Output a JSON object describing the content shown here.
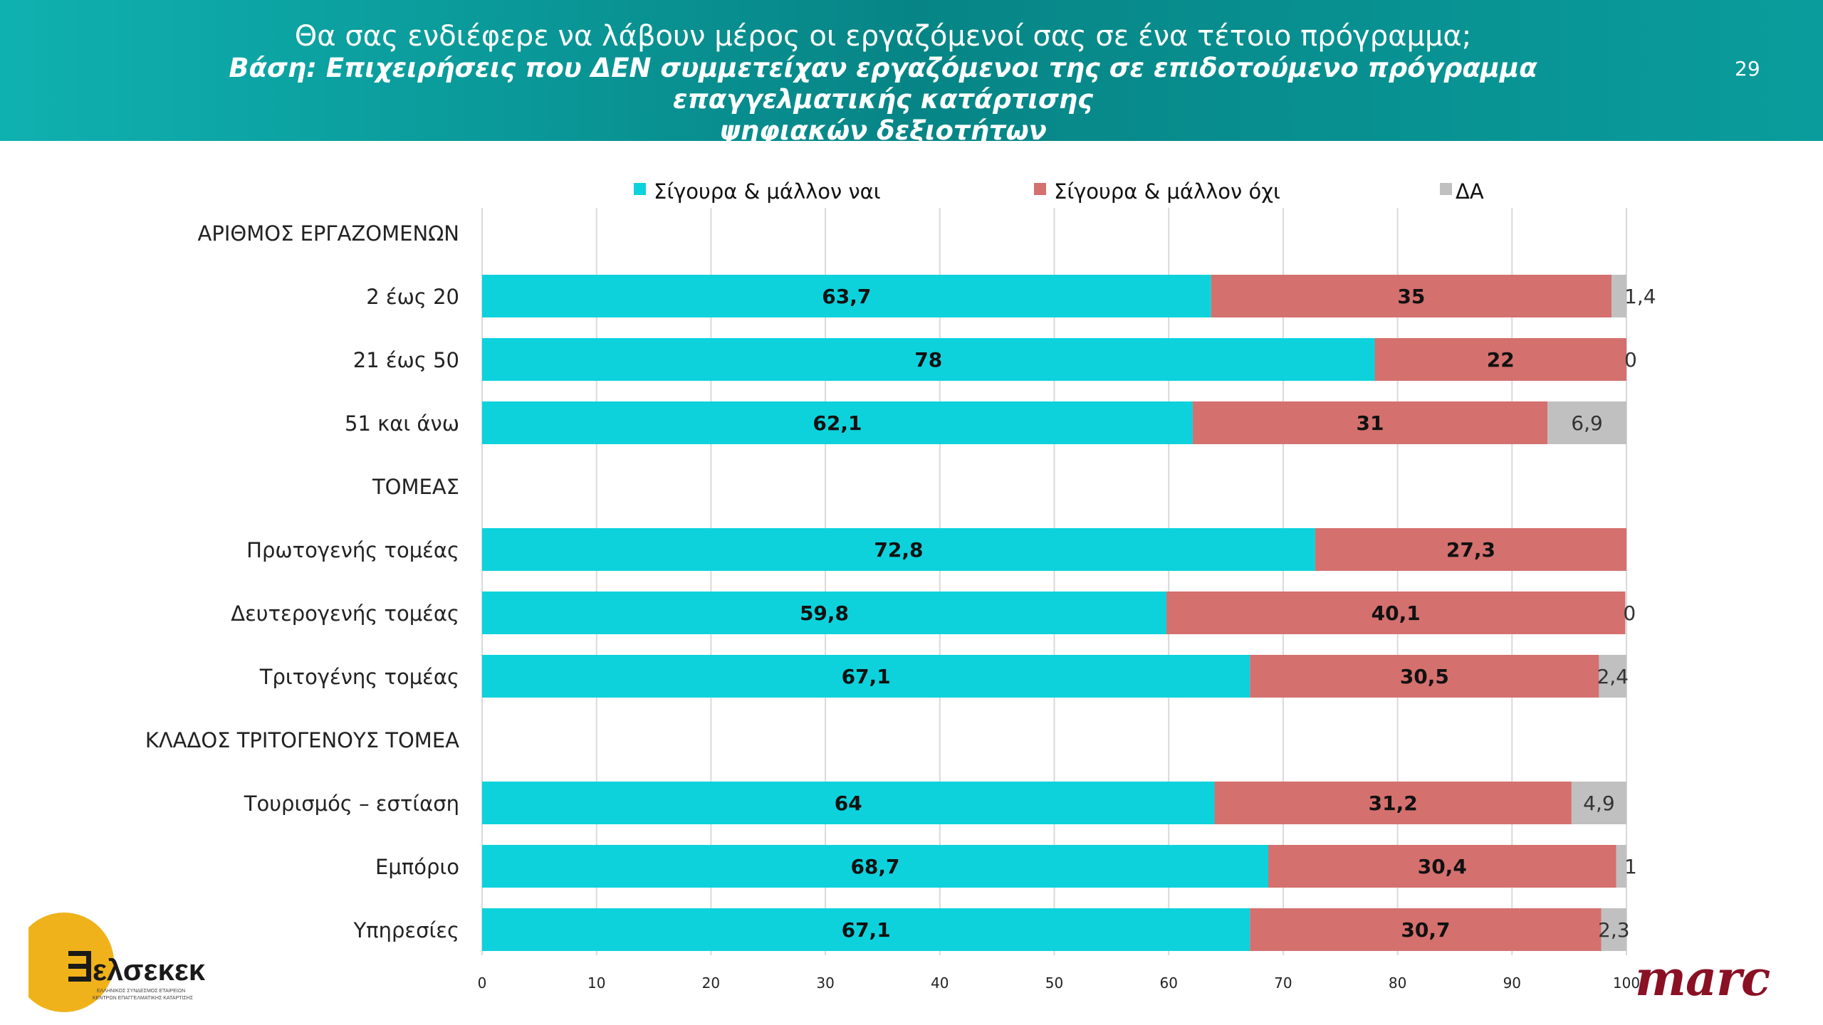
{
  "header": {
    "title": "Θα σας ενδιέφερε να λάβουν μέρος οι εργαζόμενοί σας σε ένα τέτοιο πρόγραμμα;",
    "subtitle_line1": "Βάση: Επιχειρήσεις που ΔΕΝ συμμετείχαν εργαζόμενοι της σε επιδοτούμενο πρόγραμμα επαγγελματικής κατάρτισης",
    "subtitle_line2": "ψηφιακών δεξιοτήτων",
    "page_number": "29"
  },
  "logos": {
    "left_brand": "ελσεκεκ",
    "left_tagline_1": "ΕΛΛΗΝΙΚΟΣ ΣΥΝΔΕΣΜΟΣ ΕΤΑΙΡΕΙΩΝ",
    "left_tagline_2": "ΚΕΝΤΡΩΝ ΕΠΑΓΓΕΛΜΑΤΙΚΗΣ ΚΑΤΑΡΤΙΣΗΣ",
    "right_brand": "marc"
  },
  "chart_data": {
    "type": "bar",
    "orientation": "horizontal",
    "stacked": true,
    "xlim": [
      0,
      100
    ],
    "xticks": [
      0,
      10,
      20,
      30,
      40,
      50,
      60,
      70,
      80,
      90,
      100
    ],
    "grid": true,
    "legend_position": "top",
    "colors": {
      "yes": "#0dd2dc",
      "no": "#d4706e",
      "na": "#c0c0c0"
    },
    "series": [
      {
        "key": "yes",
        "name": "Σίγουρα & μάλλον ναι"
      },
      {
        "key": "no",
        "name": "Σίγουρα & μάλλον όχι"
      },
      {
        "key": "na",
        "name": "ΔΑ"
      }
    ],
    "rows": [
      {
        "label": "ΑΡΙΘΜΟΣ ΕΡΓΑΖΟΜΕΝΩΝ",
        "section": true
      },
      {
        "label": "2 έως 20",
        "values": [
          63.7,
          35,
          1.4
        ],
        "labels": [
          "63,7",
          "35",
          "1,4"
        ]
      },
      {
        "label": "21 έως 50",
        "values": [
          78,
          22,
          0
        ],
        "labels": [
          "78",
          "22",
          "0"
        ]
      },
      {
        "label": "51 και άνω",
        "values": [
          62.1,
          31,
          6.9
        ],
        "labels": [
          "62,1",
          "31",
          "6,9"
        ]
      },
      {
        "label": "ΤΟΜΕΑΣ",
        "section": true
      },
      {
        "label": "Πρωτογενής τομέας",
        "values": [
          72.8,
          27.3
        ],
        "labels": [
          "72,8",
          "27,3"
        ]
      },
      {
        "label": "Δευτερογενής τομέας",
        "values": [
          59.8,
          40.1,
          0
        ],
        "labels": [
          "59,8",
          "40,1",
          "0"
        ]
      },
      {
        "label": "Τριτογένης τομέας",
        "values": [
          67.1,
          30.5,
          2.4
        ],
        "labels": [
          "67,1",
          "30,5",
          "2,4"
        ]
      },
      {
        "label": "ΚΛΑΔΟΣ ΤΡΙΤΟΓΕΝΟΥΣ ΤΟΜΕΑ",
        "section": true
      },
      {
        "label": "Τουρισμός – εστίαση",
        "values": [
          64,
          31.2,
          4.9
        ],
        "labels": [
          "64",
          "31,2",
          "4,9"
        ]
      },
      {
        "label": "Εμπόριο",
        "values": [
          68.7,
          30.4,
          1
        ],
        "labels": [
          "68,7",
          "30,4",
          "1"
        ]
      },
      {
        "label": "Υπηρεσίες",
        "values": [
          67.1,
          30.7,
          2.3
        ],
        "labels": [
          "67,1",
          "30,7",
          "2,3"
        ]
      }
    ]
  }
}
